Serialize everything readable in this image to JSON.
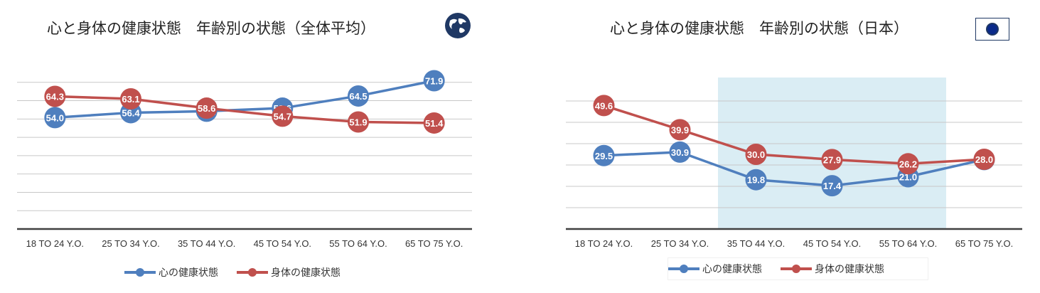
{
  "colors": {
    "mind": "#4f7fbe",
    "body": "#c0504d",
    "highlight": "#daedf4",
    "grid": "#c8c8c8",
    "axis": "#404040"
  },
  "panels": {
    "left": {
      "title": "心と身体の健康状態　年齢別の状態（全体平均）",
      "icon": "globe-icon",
      "legend": {
        "mind": "心の健康状態",
        "body": "身体の健康状態"
      }
    },
    "right": {
      "title": "心と身体の健康状態　年齢別の状態（日本）",
      "icon": "japan-flag-icon",
      "legend": {
        "mind": "心の健康状態",
        "body": "身体の健康状態"
      }
    }
  },
  "chart_data": [
    {
      "type": "line",
      "title": "心と身体の健康状態　年齢別の状態（全体平均）",
      "categories": [
        "18 TO 24 Y.O.",
        "25 TO 34 Y.O.",
        "35 TO 44 Y.O.",
        "45 TO 54 Y.O.",
        "55 TO 64 Y.O.",
        "65 TO 75 Y.O."
      ],
      "series": [
        {
          "name": "心の健康状態",
          "values": [
            54.0,
            56.4,
            57.1,
            58.6,
            64.5,
            71.9
          ]
        },
        {
          "name": "身体の健康状態",
          "values": [
            64.3,
            63.1,
            58.6,
            54.7,
            51.9,
            51.4
          ]
        }
      ],
      "ylim": [
        0,
        80
      ],
      "grid": true,
      "legend": "bottom",
      "data_labels": true
    },
    {
      "type": "line",
      "title": "心と身体の健康状態　年齢別の状態（日本）",
      "categories": [
        "18 TO 24 Y.O.",
        "25 TO 34 Y.O.",
        "35 TO 44 Y.O.",
        "45 TO 54 Y.O.",
        "55 TO 64 Y.O.",
        "65 TO 75 Y.O."
      ],
      "series": [
        {
          "name": "心の健康状態",
          "values": [
            29.5,
            30.9,
            19.8,
            17.4,
            21.0,
            27.9
          ]
        },
        {
          "name": "身体の健康状態",
          "values": [
            49.6,
            39.9,
            30.0,
            27.9,
            26.2,
            28.0
          ]
        }
      ],
      "ylim": [
        0,
        60
      ],
      "grid": true,
      "legend": "bottom",
      "data_labels": true,
      "highlight_categories": [
        "35 TO 44 Y.O.",
        "45 TO 54 Y.O.",
        "55 TO 64 Y.O."
      ]
    }
  ]
}
